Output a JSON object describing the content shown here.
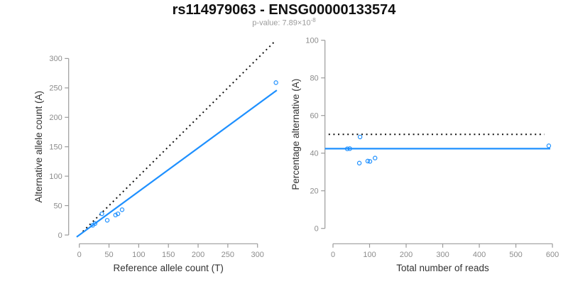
{
  "header": {
    "title": "rs114979063 - ENSG00000133574",
    "subtitle_prefix": "p-value: 7.89×10",
    "subtitle_exponent": "-8"
  },
  "colors": {
    "accent_blue": "#1E90FF",
    "dotted_line_black": "#111111",
    "axis_gray": "#9b9b9b",
    "tick_text_gray": "#8c8c8c",
    "axis_label_dark": "#333333",
    "subtitle_gray": "#9b9b9b"
  },
  "chart_data": [
    {
      "id": "allele-count-scatter",
      "type": "scatter",
      "xlabel": "Reference allele count (T)",
      "ylabel": "Alternative allele count (A)",
      "xticks": [
        0,
        50,
        100,
        150,
        200,
        250,
        300
      ],
      "yticks": [
        0,
        50,
        100,
        150,
        200,
        250,
        300
      ],
      "xlim": [
        0,
        335
      ],
      "ylim": [
        0,
        333
      ],
      "grid": false,
      "legend": false,
      "marker": "open-circle",
      "points": [
        {
          "x": 22.5,
          "y": 16.5
        },
        {
          "x": 26.5,
          "y": 19.5
        },
        {
          "x": 38,
          "y": 36
        },
        {
          "x": 47,
          "y": 25
        },
        {
          "x": 61,
          "y": 34
        },
        {
          "x": 65,
          "y": 36
        },
        {
          "x": 72,
          "y": 43
        },
        {
          "x": 331,
          "y": 259
        }
      ],
      "lines": [
        {
          "name": "identity-line",
          "style": "dotted",
          "color": "black",
          "slope": 1,
          "intercept": 0,
          "x_range": [
            6,
            330
          ]
        },
        {
          "name": "regression-line",
          "style": "solid",
          "color": "blue",
          "slope": 0.74,
          "intercept": 0,
          "x_range": [
            -4.5,
            332.5
          ]
        }
      ]
    },
    {
      "id": "percentage-alternative-scatter",
      "type": "scatter",
      "xlabel": "Total number of reads",
      "ylabel": "Percentage alternative (A)",
      "xticks": [
        0,
        100,
        200,
        300,
        400,
        500,
        600
      ],
      "yticks": [
        0,
        20,
        40,
        60,
        80,
        100
      ],
      "xlim": [
        0,
        620
      ],
      "ylim": [
        0,
        100
      ],
      "grid": false,
      "legend": false,
      "marker": "open-circle",
      "points": [
        {
          "x": 39,
          "y": 42.3
        },
        {
          "x": 46,
          "y": 42.4
        },
        {
          "x": 74,
          "y": 48.6
        },
        {
          "x": 72,
          "y": 34.7
        },
        {
          "x": 95,
          "y": 35.8
        },
        {
          "x": 101,
          "y": 35.6
        },
        {
          "x": 115,
          "y": 37.4
        },
        {
          "x": 590,
          "y": 43.9
        }
      ],
      "lines": [
        {
          "name": "expected-50pct-line",
          "style": "dotted",
          "color": "black",
          "y": 50,
          "x_range": [
            -12,
            578
          ]
        },
        {
          "name": "fitted-percentage-line",
          "style": "solid",
          "color": "blue",
          "y": 42.4,
          "x_range": [
            -22,
            594
          ]
        }
      ]
    }
  ]
}
